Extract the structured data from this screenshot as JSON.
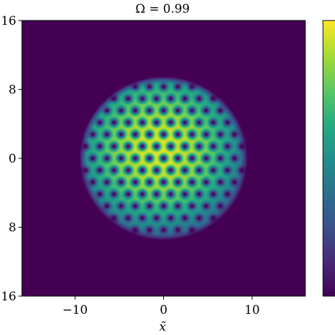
{
  "chart_data": {
    "type": "heatmap",
    "title": "Ω = 0.99",
    "xlabel": "x̃",
    "ylabel": "",
    "xlim": [
      -16,
      16
    ],
    "ylim": [
      -16,
      16
    ],
    "x_ticks": [
      -10,
      0,
      10
    ],
    "x_tick_labels": [
      "−10",
      "0",
      "10"
    ],
    "y_ticks": [
      -16,
      -8,
      0,
      8,
      16
    ],
    "y_tick_labels": [
      "16",
      "8",
      "0",
      "8",
      "16"
    ],
    "colormap": "viridis",
    "colorbar": true,
    "grid": false,
    "density": {
      "cloud_radius": 9.5,
      "peak_center": [
        -0.5,
        1.0
      ],
      "vortex_lattice": "triangular",
      "vortex_spacing": 1.6,
      "vortex_core_radius": 0.45,
      "vortex_count_approx": 100
    }
  }
}
